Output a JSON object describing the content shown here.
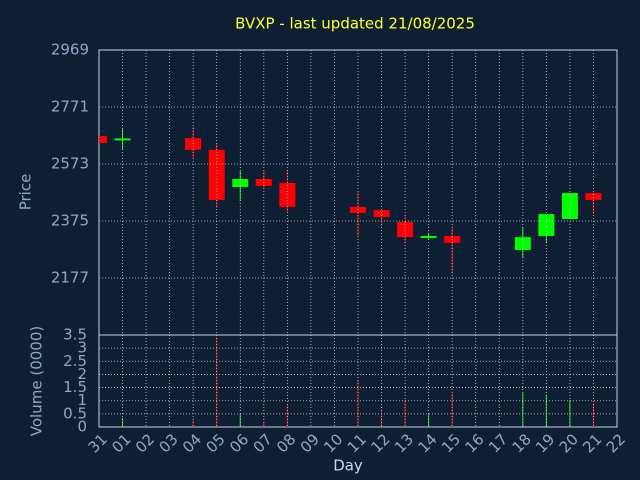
{
  "chart_data": {
    "type": "candlestick",
    "title": "BVXP - last updated 21/08/2025",
    "ylabel": "Price",
    "y2label": "Volume (0000)",
    "xlabel": "Day",
    "categories": [
      "31",
      "01",
      "02",
      "03",
      "04",
      "05",
      "06",
      "07",
      "08",
      "09",
      "10",
      "11",
      "12",
      "13",
      "14",
      "15",
      "16",
      "17",
      "18",
      "19",
      "20",
      "21",
      "22"
    ],
    "open": [
      2670,
      2660,
      null,
      null,
      2663,
      2622,
      2493,
      2521,
      2507,
      null,
      null,
      2424,
      2413,
      2372,
      2321,
      2323,
      null,
      null,
      2274,
      2323,
      2382,
      2472,
      null
    ],
    "high": [
      2670,
      2698,
      null,
      null,
      2702,
      2646,
      2549,
      2549,
      2552,
      null,
      null,
      2476,
      2413,
      2396,
      2330,
      2351,
      null,
      null,
      2351,
      2399,
      2472,
      2472,
      null
    ],
    "low": [
      2646,
      2622,
      null,
      null,
      2594,
      2420,
      2444,
      2490,
      2406,
      null,
      null,
      2323,
      2358,
      2299,
      2309,
      2198,
      null,
      null,
      2246,
      2299,
      2382,
      2399,
      null
    ],
    "close": [
      2646,
      2662,
      null,
      null,
      2622,
      2448,
      2521,
      2497,
      2424,
      null,
      null,
      2403,
      2389,
      2319,
      2323,
      2299,
      null,
      null,
      2319,
      2399,
      2472,
      2448,
      null
    ],
    "volume": [
      null,
      0.34,
      null,
      null,
      0.3,
      3.42,
      0.49,
      0.2,
      0.87,
      null,
      null,
      1.79,
      0.65,
      1.03,
      0.49,
      1.29,
      null,
      null,
      1.29,
      1.22,
      1.03,
      0.91,
      null
    ],
    "up_color": "#00ff00",
    "down_color": "#ff0000",
    "ylim": [
      1979,
      2969
    ],
    "yticks": [
      2177,
      2375,
      2573,
      2771,
      2969
    ],
    "y2lim": [
      0,
      3.5
    ],
    "y2ticks": [
      0,
      0.5,
      1,
      1.5,
      2,
      2.5,
      3,
      3.5
    ],
    "grid": true
  }
}
